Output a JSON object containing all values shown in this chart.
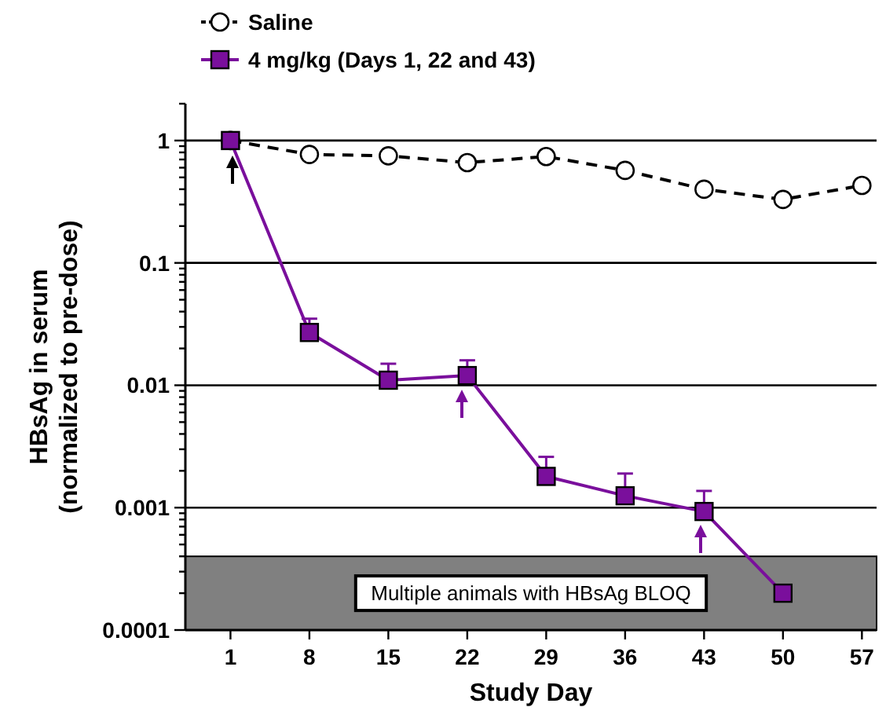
{
  "chart_data": {
    "type": "line",
    "xlabel": "Study Day",
    "ylabel": "HBsAg in serum\n(normalized to pre-dose)",
    "log": "y",
    "grid": "y",
    "legend": "top",
    "x": [
      1,
      8,
      15,
      22,
      29,
      36,
      43,
      50,
      57
    ],
    "xlim": [
      -3,
      58.3
    ],
    "xticks": [
      1,
      8,
      15,
      22,
      29,
      36,
      43,
      50,
      57
    ],
    "ylim": [
      0.0001,
      2
    ],
    "yticks": [
      {
        "value": 0.0001,
        "label": "0.0001"
      },
      {
        "value": 0.0002,
        "label": null
      },
      {
        "value": 0.0003,
        "label": null
      },
      {
        "value": 0.0004,
        "label": null
      },
      {
        "value": 0.0005,
        "label": null
      },
      {
        "value": 0.0006,
        "label": null
      },
      {
        "value": 0.0007,
        "label": null
      },
      {
        "value": 0.0008,
        "label": null
      },
      {
        "value": 0.0009,
        "label": null
      },
      {
        "value": 0.001,
        "label": "0.001"
      },
      {
        "value": 0.002,
        "label": null
      },
      {
        "value": 0.003,
        "label": null
      },
      {
        "value": 0.004,
        "label": null
      },
      {
        "value": 0.005,
        "label": null
      },
      {
        "value": 0.006,
        "label": null
      },
      {
        "value": 0.007,
        "label": null
      },
      {
        "value": 0.008,
        "label": null
      },
      {
        "value": 0.009,
        "label": null
      },
      {
        "value": 0.01,
        "label": "0.01"
      },
      {
        "value": 0.02,
        "label": null
      },
      {
        "value": 0.03,
        "label": null
      },
      {
        "value": 0.04,
        "label": null
      },
      {
        "value": 0.05,
        "label": null
      },
      {
        "value": 0.06,
        "label": null
      },
      {
        "value": 0.07,
        "label": null
      },
      {
        "value": 0.08,
        "label": null
      },
      {
        "value": 0.09,
        "label": null
      },
      {
        "value": 0.1,
        "label": "0.1"
      },
      {
        "value": 0.2,
        "label": null
      },
      {
        "value": 0.3,
        "label": null
      },
      {
        "value": 0.4,
        "label": null
      },
      {
        "value": 0.5,
        "label": null
      },
      {
        "value": 0.6,
        "label": null
      },
      {
        "value": 0.7,
        "label": null
      },
      {
        "value": 0.8,
        "label": null
      },
      {
        "value": 0.9,
        "label": null
      },
      {
        "value": 1,
        "label": "1"
      },
      {
        "value": 2,
        "label": null
      }
    ],
    "series": [
      {
        "name": "Saline",
        "color": "#000000",
        "marker": "circle",
        "line_style": "dashed",
        "values": [
          1,
          0.77,
          0.75,
          0.66,
          0.74,
          0.57,
          0.4,
          0.33,
          0.43
        ]
      },
      {
        "name": "4 mg/kg (Days 1, 22 and 43)",
        "color": "#7a0f9c",
        "marker": "square",
        "line_style": "solid",
        "values": [
          1,
          0.027,
          0.011,
          0.012,
          0.0018,
          0.00125,
          0.00093,
          0.0002,
          null
        ],
        "errors": [
          null,
          [
            0.027,
            0.035
          ],
          [
            0.011,
            0.015
          ],
          [
            0.012,
            0.016
          ],
          [
            0.0018,
            0.0026
          ],
          [
            0.00125,
            0.0019
          ],
          [
            0.00093,
            0.00137
          ],
          null,
          null
        ]
      }
    ],
    "bands": [
      {
        "axis": "y",
        "from": 0.0001,
        "to": 0.0004,
        "label": "Multiple animals with HBsAg BLOQ",
        "color": "#808080"
      }
    ]
  }
}
